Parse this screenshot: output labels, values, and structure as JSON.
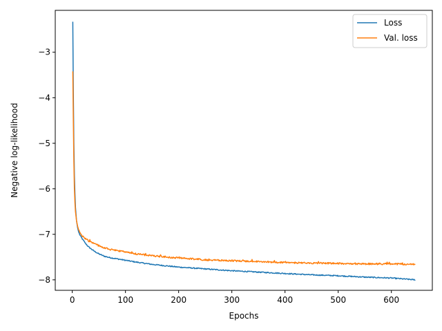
{
  "chart_data": {
    "type": "line",
    "title": "",
    "xlabel": "Epochs",
    "ylabel": "Negative log-likelihood",
    "xlim": [
      -32,
      677
    ],
    "ylim": [
      -8.23,
      -2.08
    ],
    "xticks": [
      0,
      100,
      200,
      300,
      400,
      500,
      600
    ],
    "yticks": [
      -8,
      -7,
      -6,
      -5,
      -4,
      -3
    ],
    "grid": false,
    "legend": "top-right",
    "epochs": 645,
    "series": [
      {
        "name": "Loss",
        "color": "#1f77b4",
        "x": [
          1,
          2,
          3,
          4,
          5,
          6,
          8,
          10,
          12,
          15,
          20,
          25,
          30,
          40,
          50,
          60,
          70,
          80,
          100,
          120,
          150,
          200,
          250,
          300,
          350,
          400,
          450,
          500,
          550,
          600,
          645
        ],
        "y": [
          -2.33,
          -3.9,
          -5.0,
          -5.7,
          -6.1,
          -6.4,
          -6.7,
          -6.85,
          -6.95,
          -7.03,
          -7.12,
          -7.2,
          -7.27,
          -7.36,
          -7.43,
          -7.48,
          -7.51,
          -7.53,
          -7.57,
          -7.61,
          -7.66,
          -7.72,
          -7.76,
          -7.8,
          -7.83,
          -7.86,
          -7.89,
          -7.91,
          -7.94,
          -7.96,
          -8.0
        ]
      },
      {
        "name": "Val. loss",
        "color": "#ff7f0e",
        "x": [
          1,
          2,
          3,
          4,
          5,
          6,
          8,
          10,
          12,
          15,
          20,
          25,
          30,
          40,
          50,
          60,
          70,
          80,
          100,
          120,
          150,
          200,
          250,
          300,
          350,
          400,
          450,
          500,
          550,
          600,
          645
        ],
        "y": [
          -3.42,
          -4.5,
          -5.4,
          -6.0,
          -6.3,
          -6.5,
          -6.7,
          -6.82,
          -6.9,
          -6.97,
          -7.05,
          -7.1,
          -7.14,
          -7.2,
          -7.25,
          -7.3,
          -7.33,
          -7.35,
          -7.39,
          -7.43,
          -7.47,
          -7.52,
          -7.56,
          -7.58,
          -7.6,
          -7.62,
          -7.63,
          -7.64,
          -7.65,
          -7.65,
          -7.66
        ]
      }
    ]
  }
}
